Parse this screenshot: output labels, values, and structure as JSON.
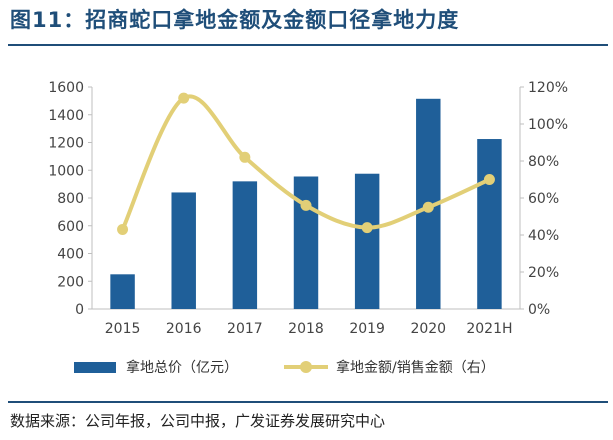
{
  "title": "图11：招商蛇口拿地金额及金额口径拿地力度",
  "source": "数据来源：公司年报，公司中报，广发证券发展研究中心",
  "colors": {
    "bar": "#1f5f99",
    "line": "#e2cf77",
    "title": "#1f4e79"
  },
  "chart_data": {
    "type": "bar",
    "title": "",
    "categories": [
      "2015",
      "2016",
      "2017",
      "2018",
      "2019",
      "2020",
      "2021H"
    ],
    "series": [
      {
        "name": "拿地总价（亿元）",
        "type": "bar",
        "axis": "left",
        "values": [
          250,
          840,
          920,
          955,
          975,
          1515,
          1225
        ]
      },
      {
        "name": "拿地金额/销售金额（右）",
        "type": "line",
        "axis": "right",
        "smooth": true,
        "values": [
          43,
          114,
          82,
          56,
          44,
          55,
          70
        ]
      }
    ],
    "y_left": {
      "min": 0,
      "max": 1600,
      "step": 200,
      "ticks": [
        "0",
        "200",
        "400",
        "600",
        "800",
        "1000",
        "1200",
        "1400",
        "1600"
      ]
    },
    "y_right": {
      "min": 0,
      "max": 120,
      "step": 20,
      "ticks": [
        "0%",
        "20%",
        "40%",
        "60%",
        "80%",
        "100%",
        "120%"
      ]
    },
    "grid": false,
    "legend_position": "bottom"
  }
}
